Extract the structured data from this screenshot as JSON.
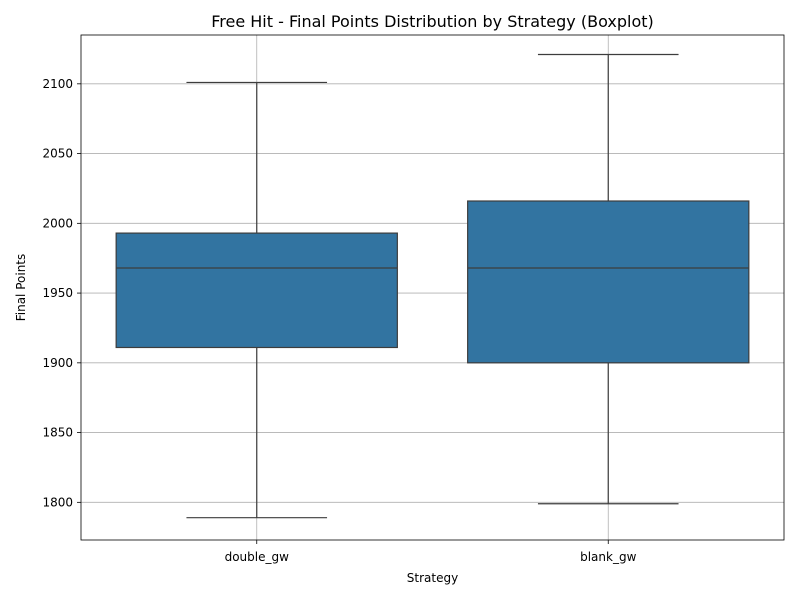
{
  "chart_data": {
    "type": "boxplot",
    "title": "Free Hit - Final Points Distribution by Strategy (Boxplot)",
    "xlabel": "Strategy",
    "ylabel": "Final Points",
    "categories": [
      "double_gw",
      "blank_gw"
    ],
    "boxes": [
      {
        "category": "double_gw",
        "whisker_low": 1789,
        "q1": 1911,
        "median": 1968,
        "q3": 1993,
        "whisker_high": 2101
      },
      {
        "category": "blank_gw",
        "whisker_low": 1799,
        "q1": 1900,
        "median": 1968,
        "q3": 2016,
        "whisker_high": 2121
      }
    ],
    "yticks": [
      1800,
      1850,
      1900,
      1950,
      2000,
      2050,
      2100
    ],
    "ylim": [
      1773,
      2135
    ],
    "grid": true,
    "box_color": "#3274a1",
    "line_color": "#3d3d3d"
  }
}
